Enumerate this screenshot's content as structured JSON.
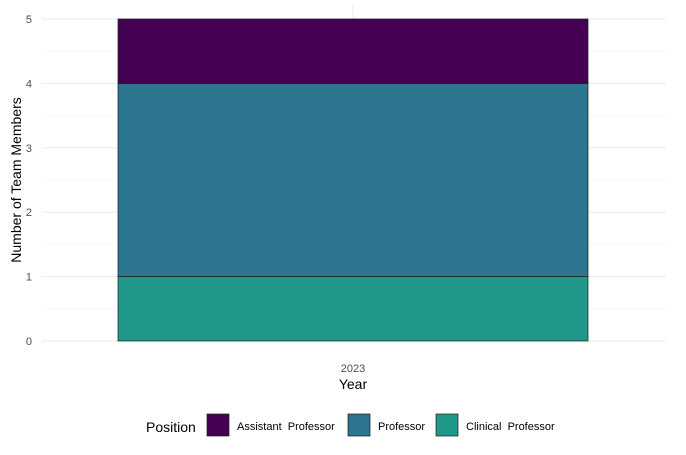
{
  "chart_data": {
    "type": "bar",
    "stacked": true,
    "categories": [
      "2023"
    ],
    "series": [
      {
        "name": "Clinical  Professor",
        "values": [
          1
        ],
        "color": "#21998a"
      },
      {
        "name": "Professor",
        "values": [
          3
        ],
        "color": "#2c778f"
      },
      {
        "name": "Assistant  Professor",
        "values": [
          1
        ],
        "color": "#440154"
      }
    ],
    "xlabel": "Year",
    "ylabel": "Number of Team Members",
    "ylim": [
      0,
      5
    ],
    "yticks": [
      "0",
      "1",
      "2",
      "3",
      "4",
      "5"
    ],
    "grid": true,
    "legend": {
      "title": "Position",
      "placement": "bottom",
      "order": [
        "Assistant  Professor",
        "Professor",
        "Clinical  Professor"
      ]
    }
  }
}
